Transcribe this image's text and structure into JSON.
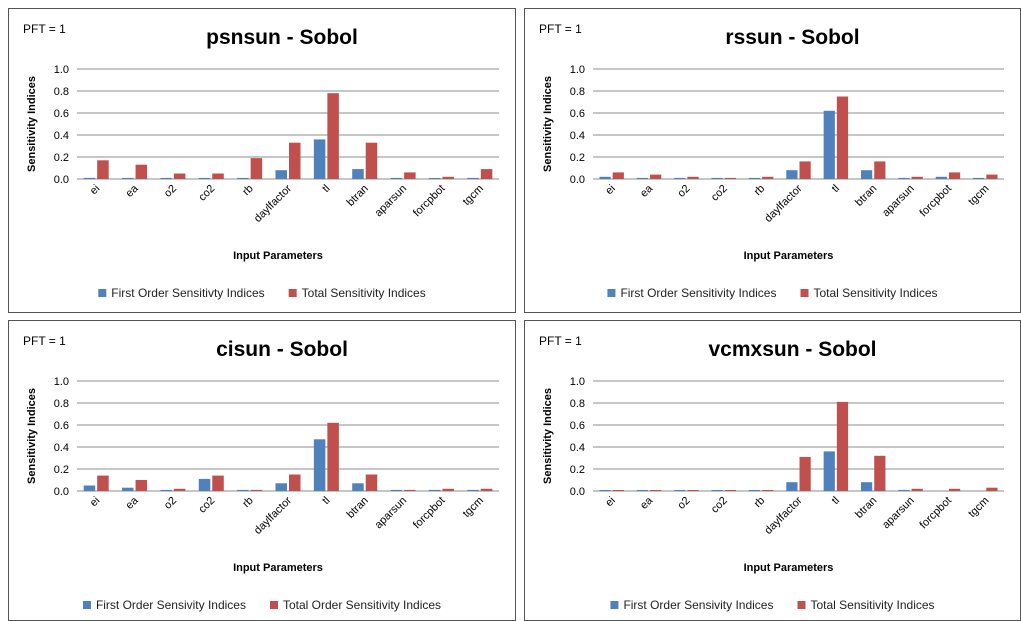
{
  "colors": {
    "first": "#4F81BD",
    "total": "#C0504D",
    "grid": "#8C8C8C"
  },
  "chart_data": [
    {
      "type": "bar",
      "annotation": "PFT = 1",
      "title": "psnsun - Sobol",
      "xlabel": "Input Parameters",
      "ylabel": "Sensitivity Indices",
      "ylim": [
        0,
        1
      ],
      "yticks": [
        "0.0",
        "0.2",
        "0.4",
        "0.6",
        "0.8",
        "1.0"
      ],
      "grid": true,
      "legend_position": "bottom",
      "categories": [
        "ei",
        "ea",
        "o2",
        "co2",
        "rb",
        "daylfactor",
        "tl",
        "btran",
        "aparsun",
        "forcpbot",
        "tgcm"
      ],
      "series": [
        {
          "name": "First Order Sensitivty Indices",
          "values": [
            0.01,
            0.01,
            0.01,
            0.01,
            0.01,
            0.08,
            0.36,
            0.09,
            0.01,
            0.005,
            0.01
          ]
        },
        {
          "name": "Total Sensitivity Indices",
          "values": [
            0.17,
            0.13,
            0.05,
            0.05,
            0.19,
            0.33,
            0.78,
            0.33,
            0.06,
            0.02,
            0.09
          ]
        }
      ]
    },
    {
      "type": "bar",
      "annotation": "PFT = 1",
      "title": "rssun - Sobol",
      "xlabel": "Input Parameters",
      "ylabel": "Sensitivity Indices",
      "ylim": [
        0,
        1
      ],
      "yticks": [
        "0.0",
        "0.2",
        "0.4",
        "0.6",
        "0.8",
        "1.0"
      ],
      "grid": true,
      "legend_position": "bottom",
      "categories": [
        "ei",
        "ea",
        "o2",
        "co2",
        "rb",
        "daylfactor",
        "tl",
        "btran",
        "aparsun",
        "forcpbot",
        "tgcm"
      ],
      "series": [
        {
          "name": "First Order Sensitivity Indices",
          "values": [
            0.02,
            0.01,
            0.01,
            0.01,
            0.01,
            0.08,
            0.62,
            0.08,
            0.01,
            0.02,
            0.01
          ]
        },
        {
          "name": "Total Sensitivity Indices",
          "values": [
            0.06,
            0.04,
            0.02,
            0.01,
            0.02,
            0.16,
            0.75,
            0.16,
            0.02,
            0.06,
            0.04
          ]
        }
      ]
    },
    {
      "type": "bar",
      "annotation": "PFT = 1",
      "title": "cisun - Sobol",
      "xlabel": "Input Parameters",
      "ylabel": "Sensitivity Indices",
      "ylim": [
        0,
        1
      ],
      "yticks": [
        "0.0",
        "0.2",
        "0.4",
        "0.6",
        "0.8",
        "1.0"
      ],
      "grid": true,
      "legend_position": "bottom",
      "categories": [
        "ei",
        "ea",
        "o2",
        "co2",
        "rb",
        "daylfactor",
        "tl",
        "btran",
        "aparsun",
        "forcpbot",
        "tgcm"
      ],
      "series": [
        {
          "name": "First Order Sensivity Indices",
          "values": [
            0.05,
            0.03,
            0.01,
            0.11,
            0.01,
            0.07,
            0.47,
            0.07,
            0.01,
            0.01,
            0.01
          ]
        },
        {
          "name": "Total Order Sensitivity Indices",
          "values": [
            0.14,
            0.1,
            0.02,
            0.14,
            0.01,
            0.15,
            0.62,
            0.15,
            0.01,
            0.02,
            0.02
          ]
        }
      ]
    },
    {
      "type": "bar",
      "annotation": "PFT = 1",
      "title": "vcmxsun - Sobol",
      "xlabel": "Input Parameters",
      "ylabel": "Sensitivity Indices",
      "ylim": [
        0,
        1
      ],
      "yticks": [
        "0.0",
        "0.2",
        "0.4",
        "0.6",
        "0.8",
        "1.0"
      ],
      "grid": true,
      "legend_position": "bottom",
      "categories": [
        "ei",
        "ea",
        "o2",
        "co2",
        "rb",
        "daylfactor",
        "tl",
        "btran",
        "aparsun",
        "forcpbot",
        "tgcm"
      ],
      "series": [
        {
          "name": "First Order Sensivity Indices",
          "values": [
            0.005,
            0.005,
            0.005,
            0.005,
            0.005,
            0.08,
            0.36,
            0.08,
            0.01,
            0.0,
            0.0
          ]
        },
        {
          "name": "Total Sensitivity Indices",
          "values": [
            0.005,
            0.005,
            0.005,
            0.005,
            0.005,
            0.31,
            0.81,
            0.32,
            0.02,
            0.02,
            0.03
          ]
        }
      ]
    }
  ]
}
